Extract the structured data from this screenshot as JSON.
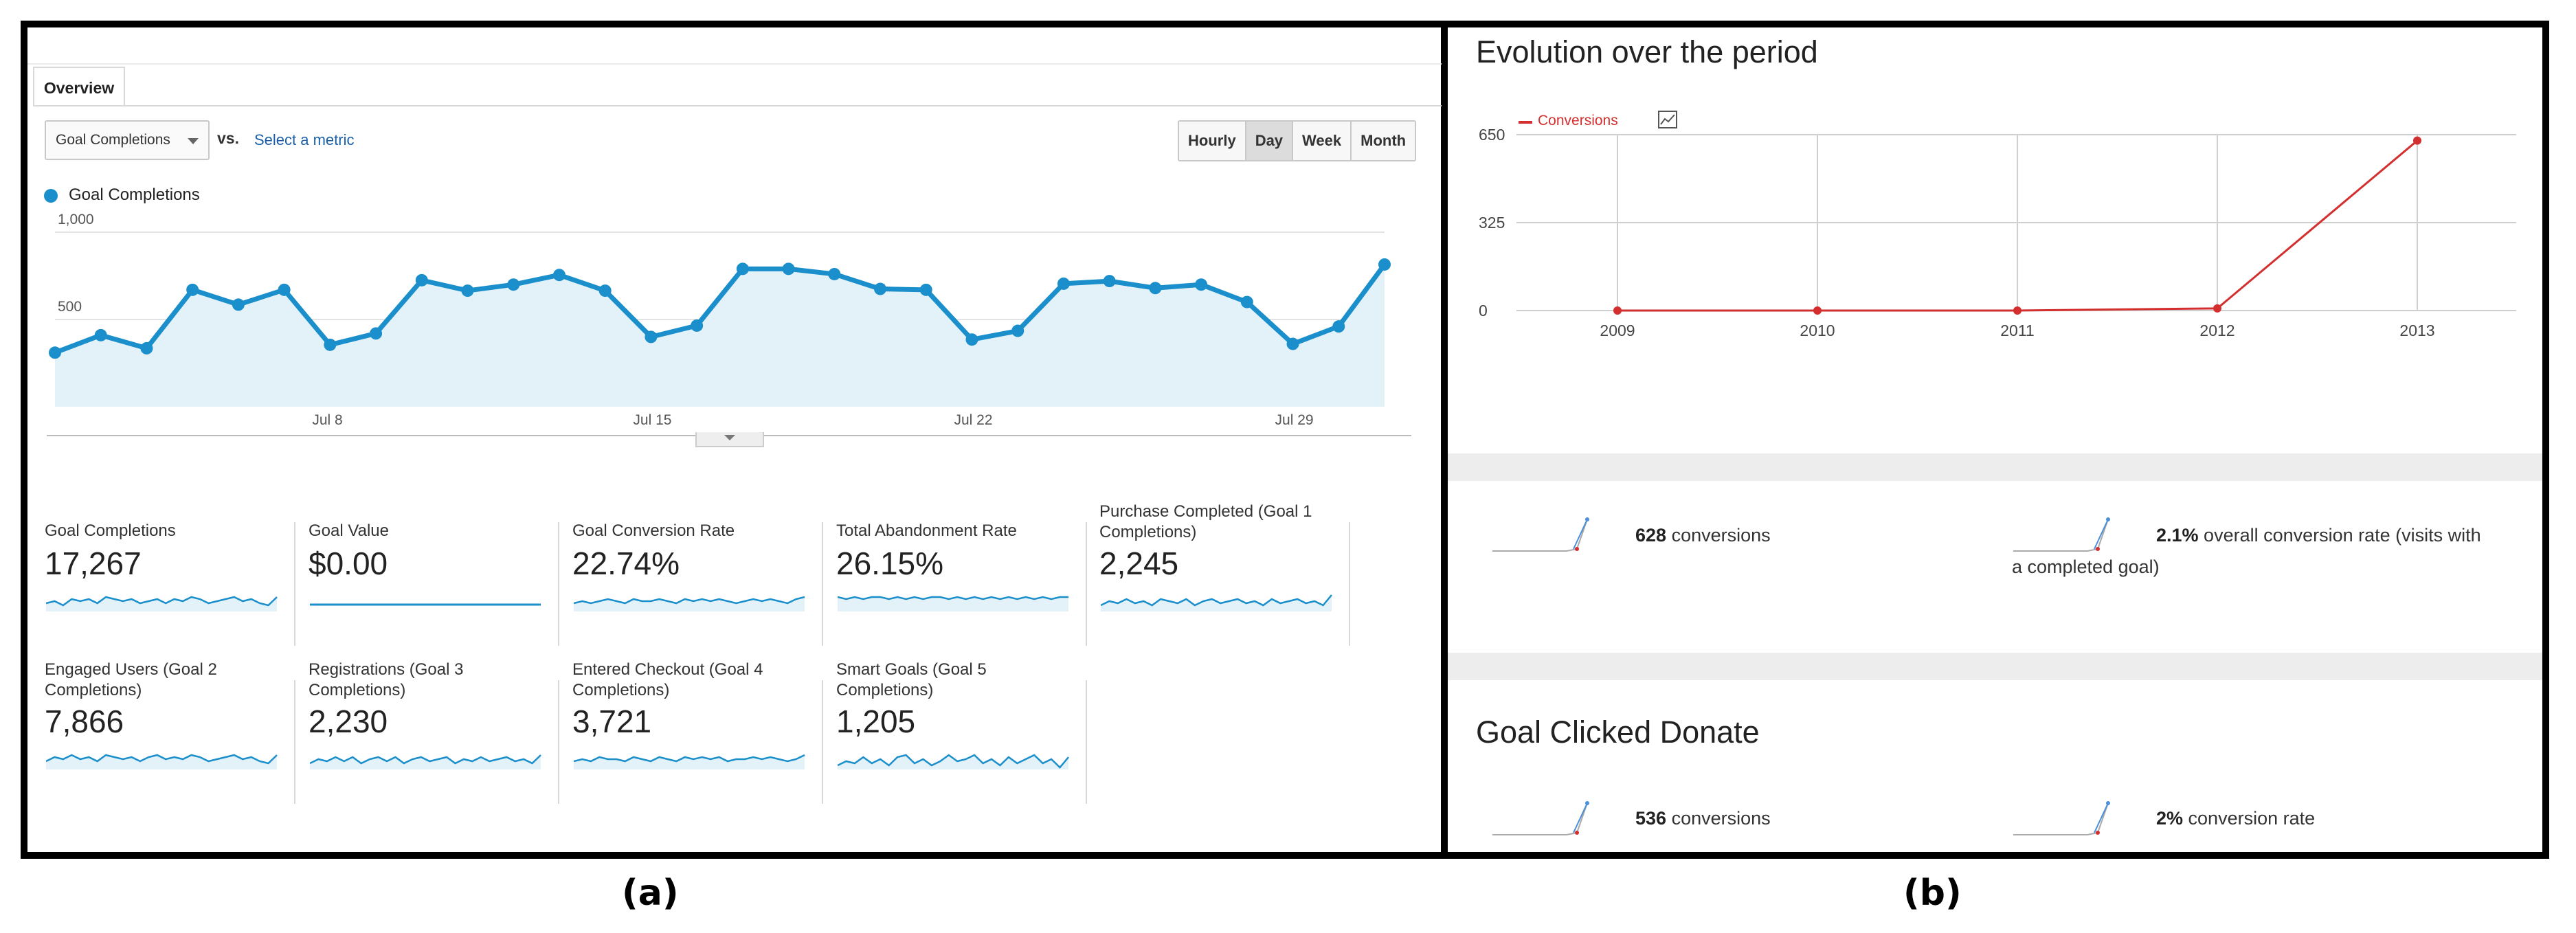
{
  "panel_a": {
    "tab_label": "Overview",
    "metric_select": "Goal Completions",
    "vs_label": "vs.",
    "select_metric_link": "Select a metric",
    "period_buttons": [
      {
        "label": "Hourly",
        "active": false
      },
      {
        "label": "Day",
        "active": true
      },
      {
        "label": "Week",
        "active": false
      },
      {
        "label": "Month",
        "active": false
      }
    ],
    "legend_label": "Goal Completions",
    "accent_color": "#1a8fcb"
  },
  "chart_data": [
    {
      "type": "area",
      "series": [
        {
          "name": "Goal Completions",
          "values": [
            310,
            410,
            335,
            670,
            585,
            670,
            355,
            420,
            725,
            665,
            700,
            755,
            665,
            400,
            465,
            790,
            790,
            760,
            675,
            670,
            385,
            435,
            705,
            720,
            680,
            700,
            600,
            360,
            460,
            815
          ]
        }
      ],
      "x_tick_labels": [
        {
          "index": 6,
          "label": "Jul 8"
        },
        {
          "index": 13,
          "label": "Jul 15"
        },
        {
          "index": 20,
          "label": "Jul 22"
        },
        {
          "index": 27,
          "label": "Jul 29"
        }
      ],
      "y_tick_labels": [
        "1,000",
        "500"
      ],
      "y_ticks": [
        1000,
        500
      ],
      "ylim": [
        0,
        1000
      ]
    },
    {
      "type": "line",
      "title": "Evolution over the period",
      "categories": [
        "2009",
        "2010",
        "2011",
        "2012",
        "2013"
      ],
      "series": [
        {
          "name": "Conversions",
          "values": [
            0,
            0,
            0,
            8,
            628
          ]
        }
      ],
      "y_tick_labels": [
        "650",
        "325",
        "0"
      ],
      "y_ticks": [
        650,
        325,
        0
      ],
      "ylim": [
        0,
        650
      ],
      "color": "#d32f2f"
    }
  ],
  "cards": [
    {
      "label": "Goal Completions",
      "value": "17,267",
      "spark": [
        10,
        11,
        9,
        12,
        11,
        12,
        10,
        13,
        12,
        11,
        12,
        10,
        11,
        12,
        10,
        12,
        11,
        13,
        12,
        10,
        11,
        12,
        13,
        11,
        12,
        10,
        9,
        13
      ],
      "flat": false
    },
    {
      "label": "Goal Value",
      "value": "$0.00",
      "spark": [],
      "flat": true
    },
    {
      "label": "Goal Conversion Rate",
      "value": "22.74%",
      "spark": [
        10,
        11,
        10,
        11,
        12,
        11,
        10,
        12,
        11,
        11,
        12,
        11,
        10,
        12,
        11,
        12,
        11,
        12,
        11,
        10,
        11,
        12,
        11,
        12,
        11,
        10,
        12,
        13
      ],
      "flat": false
    },
    {
      "label": "Total Abandonment Rate",
      "value": "26.15%",
      "spark": [
        13,
        12,
        13,
        12,
        13,
        13,
        12,
        13,
        12,
        13,
        12,
        13,
        13,
        12,
        13,
        12,
        13,
        12,
        13,
        12,
        13,
        12,
        13,
        12,
        13,
        12,
        13,
        13
      ],
      "flat": false
    },
    {
      "label": "Purchase Completed (Goal 1 Completions)",
      "value": "2,245",
      "spark": [
        9,
        11,
        10,
        12,
        10,
        11,
        9,
        12,
        11,
        10,
        12,
        9,
        11,
        12,
        10,
        11,
        12,
        10,
        11,
        9,
        12,
        10,
        11,
        12,
        10,
        11,
        9,
        14
      ],
      "flat": false
    },
    {
      "label": "Engaged Users (Goal 2 Completions)",
      "value": "7,866",
      "spark": [
        10,
        12,
        11,
        13,
        11,
        12,
        10,
        13,
        12,
        11,
        12,
        10,
        12,
        13,
        11,
        12,
        11,
        13,
        12,
        10,
        11,
        12,
        13,
        11,
        12,
        10,
        9,
        13
      ],
      "flat": false
    },
    {
      "label": "Registrations (Goal 3 Completions)",
      "value": "2,230",
      "spark": [
        9,
        11,
        10,
        12,
        10,
        12,
        9,
        11,
        12,
        10,
        12,
        9,
        11,
        12,
        10,
        11,
        12,
        9,
        11,
        10,
        12,
        10,
        11,
        12,
        10,
        11,
        9,
        13
      ],
      "flat": false
    },
    {
      "label": "Entered Checkout (Goal 4 Completions)",
      "value": "3,721",
      "spark": [
        10,
        11,
        10,
        12,
        11,
        11,
        10,
        12,
        11,
        10,
        12,
        11,
        10,
        12,
        11,
        12,
        11,
        12,
        10,
        11,
        11,
        12,
        11,
        12,
        11,
        10,
        11,
        13
      ],
      "flat": false
    },
    {
      "label": "Smart Goals (Goal 5 Completions)",
      "value": "1,205",
      "spark": [
        8,
        10,
        9,
        12,
        9,
        11,
        8,
        12,
        13,
        9,
        11,
        8,
        10,
        13,
        10,
        11,
        13,
        9,
        11,
        8,
        12,
        9,
        11,
        13,
        9,
        11,
        7,
        12
      ],
      "flat": false
    }
  ],
  "panel_b": {
    "legend_label": "Conversions",
    "legend_color": "#d32f2f",
    "stat1_value": "628",
    "stat1_text": " conversions",
    "stat2_value": "2.1%",
    "stat2_text": " overall conversion rate (visits with a completed goal)",
    "goal_title": "Goal Clicked Donate",
    "stat3_value": "536",
    "stat3_text": " conversions",
    "stat4_value": "2%",
    "stat4_text": " conversion rate"
  },
  "captions": {
    "a": "(a)",
    "b": "(b)"
  }
}
